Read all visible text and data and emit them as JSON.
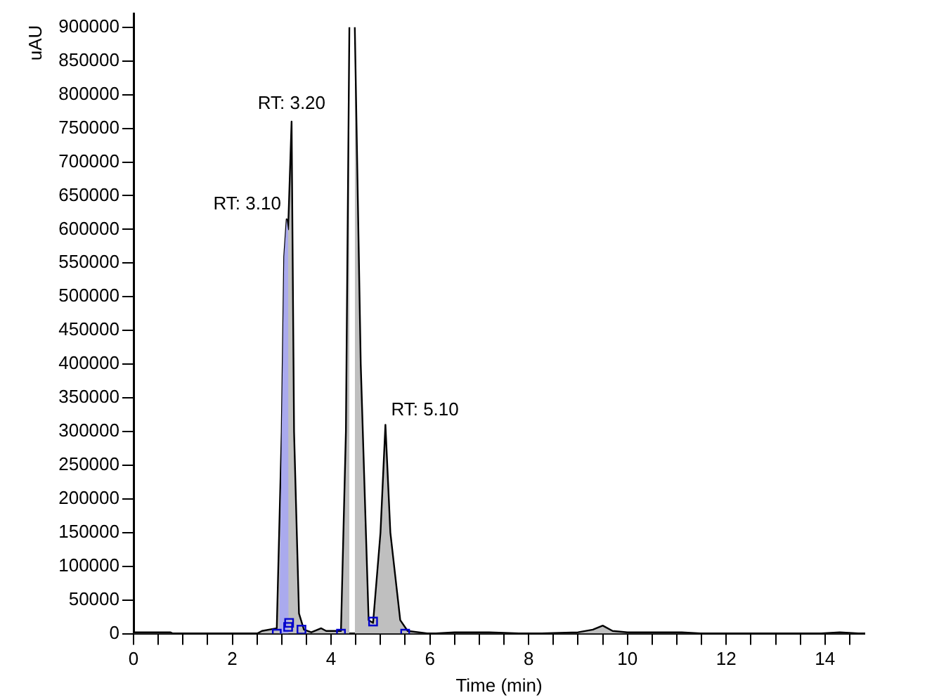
{
  "chart_data": {
    "type": "area",
    "xlabel": "Time (min)",
    "ylabel": "uAU",
    "xlim": [
      0,
      14.8
    ],
    "ylim": [
      0,
      920000
    ],
    "xticks": [
      0,
      {
        "value": 0.5,
        "label": null
      },
      {
        "value": 1,
        "label": null
      },
      {
        "value": 1.5,
        "label": null
      },
      2,
      {
        "value": 2.5,
        "label": null
      },
      {
        "value": 3,
        "label": null
      },
      {
        "value": 3.5,
        "label": null
      },
      4,
      {
        "value": 4.5,
        "label": null
      },
      {
        "value": 5,
        "label": null
      },
      {
        "value": 5.5,
        "label": null
      },
      6,
      {
        "value": 6.5,
        "label": null
      },
      {
        "value": 7,
        "label": null
      },
      {
        "value": 7.5,
        "label": null
      },
      8,
      {
        "value": 8.5,
        "label": null
      },
      {
        "value": 9,
        "label": null
      },
      {
        "value": 9.5,
        "label": null
      },
      10,
      {
        "value": 10.5,
        "label": null
      },
      {
        "value": 11,
        "label": null
      },
      {
        "value": 11.5,
        "label": null
      },
      12,
      {
        "value": 12.5,
        "label": null
      },
      {
        "value": 13,
        "label": null
      },
      {
        "value": 13.5,
        "label": null
      },
      14,
      {
        "value": 14.5,
        "label": null
      }
    ],
    "yticks": [
      0,
      50000,
      100000,
      150000,
      200000,
      250000,
      300000,
      350000,
      400000,
      450000,
      500000,
      550000,
      600000,
      650000,
      700000,
      750000,
      800000,
      850000,
      900000
    ],
    "grid": false,
    "legend": false,
    "series": [
      {
        "color": "#000000",
        "x": [
          0,
          0.75,
          0.8,
          2.5,
          2.6,
          2.9,
          3.0,
          3.05,
          3.1,
          3.13,
          3.2,
          3.25,
          3.35,
          3.45,
          3.6,
          3.8,
          3.9,
          4.2,
          4.3,
          4.37,
          4.42,
          4.48,
          4.6,
          4.76,
          4.85,
          5.0,
          5.1,
          5.2,
          5.4,
          5.55,
          6,
          6.5,
          7,
          7.2,
          8,
          9,
          9.3,
          9.5,
          9.7,
          10,
          11.1,
          11.6,
          13.8,
          14.3,
          14.8
        ],
        "values": [
          2000,
          2000,
          0,
          0,
          4000,
          8000,
          300000,
          560000,
          615000,
          600000,
          760000,
          300000,
          30000,
          6000,
          2000,
          8000,
          4000,
          4000,
          300000,
          900000,
          null,
          900000,
          400000,
          20000,
          16000,
          150000,
          310000,
          150000,
          20000,
          4000,
          0,
          2000,
          2000,
          2000,
          0,
          2000,
          6000,
          12000,
          4000,
          2000,
          2000,
          0,
          0,
          2000,
          0
        ]
      },
      {
        "type": "area",
        "color": "#aaaaee",
        "x": [
          2.95,
          2.98,
          3.0,
          3.02,
          3.05,
          3.1,
          3.13,
          3.14
        ],
        "values": [
          6000,
          180000,
          300000,
          400000,
          560000,
          615000,
          600000,
          10000
        ]
      },
      {
        "type": "scatter",
        "color": "#0000cc",
        "marker": "square",
        "x": [
          2.9,
          3.13,
          3.15,
          3.4,
          4.2,
          4.85,
          5.5
        ],
        "values": [
          0,
          10000,
          16000,
          6000,
          0,
          18000,
          0
        ]
      }
    ],
    "annotations": [
      {
        "text": "RT: 3.10",
        "x": 3.1,
        "y": 615000
      },
      {
        "text": "RT: 3.20",
        "x": 3.2,
        "y": 760000
      },
      {
        "text": "RT: 5.10",
        "x": 5.1,
        "y": 310000
      }
    ]
  }
}
